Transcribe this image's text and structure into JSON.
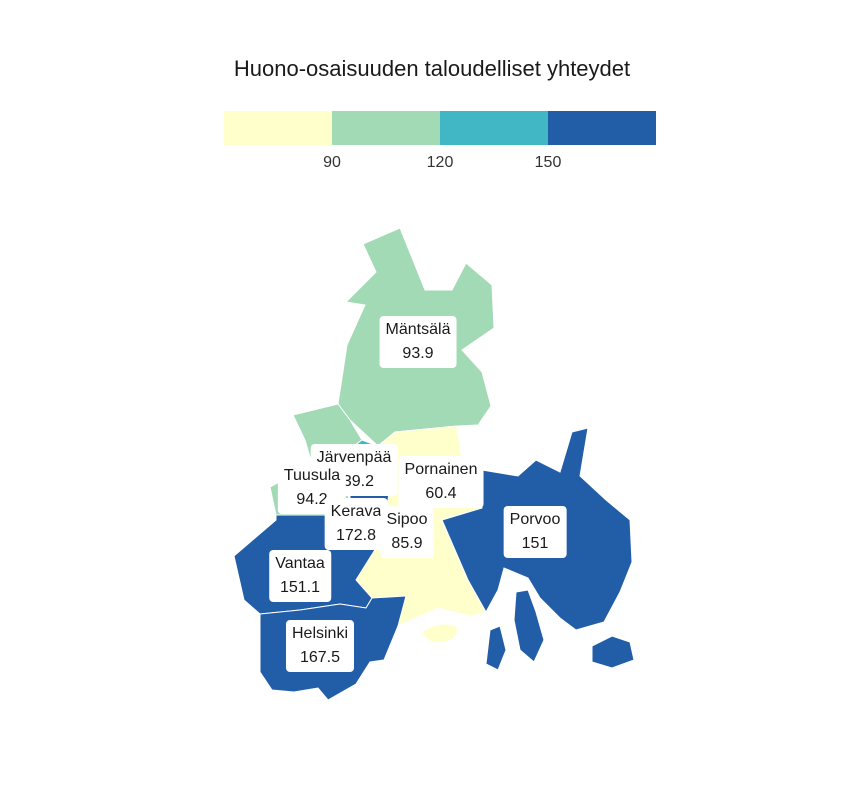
{
  "title": "Huono-osaisuuden taloudelliset yhteydet",
  "legend": {
    "bins": [
      "#ffffcc",
      "#a1dab4",
      "#41b6c4",
      "#225ea8"
    ],
    "ticks": [
      "90",
      "120",
      "150"
    ]
  },
  "municipalities": [
    {
      "name": "Mäntsälä",
      "value": "93.9"
    },
    {
      "name": "Järvenpää",
      "value": "139.2"
    },
    {
      "name": "Tuusula",
      "value": "94.2"
    },
    {
      "name": "Pornainen",
      "value": "60.4"
    },
    {
      "name": "Kerava",
      "value": "172.8"
    },
    {
      "name": "Sipoo",
      "value": "85.9"
    },
    {
      "name": "Porvoo",
      "value": "151"
    },
    {
      "name": "Vantaa",
      "value": "151.1"
    },
    {
      "name": "Helsinki",
      "value": "167.5"
    }
  ]
}
